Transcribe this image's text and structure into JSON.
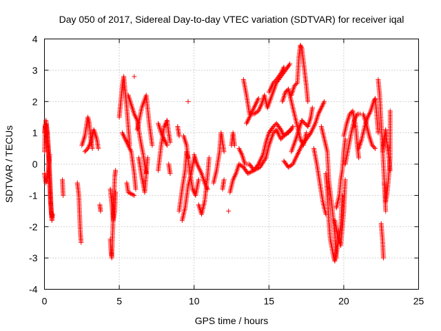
{
  "chart_data": {
    "type": "scatter",
    "title": "Day 050 of 2017, Sidereal Day-to-day VTEC variation (SDTVAR) for receiver iqal",
    "xlabel": "GPS time / hours",
    "ylabel": "SDTVAR / TECUs",
    "xlim": [
      0,
      25
    ],
    "ylim": [
      -4,
      4
    ],
    "xticks": [
      0,
      5,
      10,
      15,
      20,
      25
    ],
    "yticks": [
      -4,
      -3,
      -2,
      -1,
      0,
      1,
      2,
      3,
      4
    ],
    "xtick_labels": [
      "0",
      "5",
      "10",
      "15",
      "20",
      "25"
    ],
    "ytick_labels": [
      "-4",
      "-3",
      "-2",
      "-1",
      "0",
      "1",
      "2",
      "3",
      "4"
    ],
    "grid": true,
    "marker": "plus",
    "color": "#ff0000",
    "tracks": [
      [
        [
          0.0,
          1.0
        ],
        [
          0.1,
          1.4
        ],
        [
          0.2,
          1.0
        ],
        [
          0.3,
          0.3
        ],
        [
          0.4,
          -0.8
        ],
        [
          0.45,
          -1.5
        ],
        [
          0.5,
          -1.8
        ],
        [
          0.55,
          -1.6
        ]
      ],
      [
        [
          0.0,
          -0.3
        ],
        [
          0.1,
          -0.6
        ],
        [
          0.2,
          -0.4
        ],
        [
          0.3,
          0.0
        ],
        [
          0.35,
          0.3
        ]
      ],
      [
        [
          0.0,
          0.4
        ],
        [
          0.05,
          1.2
        ],
        [
          0.12,
          1.3
        ],
        [
          0.2,
          0.8
        ],
        [
          0.3,
          -0.1
        ],
        [
          0.4,
          -1.2
        ],
        [
          0.5,
          -1.7
        ]
      ],
      [
        [
          2.2,
          -0.6
        ],
        [
          2.3,
          -1.0
        ],
        [
          2.35,
          -1.6
        ],
        [
          2.4,
          -2.2
        ],
        [
          2.45,
          -2.5
        ]
      ],
      [
        [
          2.5,
          0.6
        ],
        [
          2.7,
          0.9
        ],
        [
          2.9,
          1.5
        ],
        [
          3.0,
          1.3
        ],
        [
          3.1,
          0.8
        ],
        [
          3.2,
          0.5
        ]
      ],
      [
        [
          2.7,
          0.4
        ],
        [
          2.9,
          0.5
        ],
        [
          3.1,
          0.7
        ],
        [
          3.3,
          1.1
        ],
        [
          3.5,
          0.8
        ],
        [
          3.6,
          0.5
        ]
      ],
      [
        [
          3.7,
          -1.3
        ],
        [
          3.75,
          -1.5
        ]
      ],
      [
        [
          4.4,
          -2.4
        ],
        [
          4.45,
          -2.8
        ],
        [
          4.5,
          -3.0
        ],
        [
          4.55,
          -2.3
        ],
        [
          4.6,
          -1.6
        ],
        [
          4.65,
          -1.0
        ],
        [
          4.7,
          -0.4
        ],
        [
          4.75,
          -0.2
        ]
      ],
      [
        [
          4.4,
          -0.8
        ],
        [
          4.5,
          -1.3
        ],
        [
          4.6,
          -1.8
        ],
        [
          4.7,
          -1.5
        ],
        [
          4.75,
          -0.9
        ]
      ],
      [
        [
          5.0,
          1.5
        ],
        [
          5.1,
          2.0
        ],
        [
          5.2,
          2.5
        ],
        [
          5.3,
          2.8
        ],
        [
          5.4,
          2.3
        ],
        [
          5.5,
          1.8
        ],
        [
          5.6,
          1.2
        ],
        [
          5.7,
          0.6
        ]
      ],
      [
        [
          5.2,
          1.0
        ],
        [
          5.4,
          0.8
        ],
        [
          5.6,
          0.6
        ],
        [
          5.8,
          0.4
        ],
        [
          6.0,
          -0.3
        ],
        [
          6.1,
          -0.8
        ]
      ],
      [
        [
          5.6,
          2.2
        ],
        [
          5.8,
          1.9
        ],
        [
          6.0,
          1.6
        ],
        [
          6.2,
          1.4
        ],
        [
          6.4,
          0.8
        ],
        [
          6.6,
          0.3
        ],
        [
          6.8,
          -0.3
        ]
      ],
      [
        [
          6.0,
          2.8
        ]
      ],
      [
        [
          6.2,
          1.1
        ],
        [
          6.5,
          1.8
        ],
        [
          6.8,
          2.2
        ],
        [
          7.0,
          1.3
        ],
        [
          7.2,
          0.6
        ]
      ],
      [
        [
          6.3,
          0.2
        ],
        [
          6.5,
          -0.4
        ],
        [
          6.7,
          -0.9
        ],
        [
          6.9,
          0.2
        ]
      ],
      [
        [
          7.6,
          -0.2
        ],
        [
          7.8,
          0.6
        ],
        [
          8.0,
          1.2
        ],
        [
          8.2,
          1.4
        ],
        [
          8.3,
          1.0
        ],
        [
          8.4,
          0.7
        ]
      ],
      [
        [
          7.6,
          1.3
        ],
        [
          7.8,
          1.0
        ],
        [
          8.0,
          0.8
        ],
        [
          8.2,
          0.6
        ]
      ],
      [
        [
          8.3,
          0.0
        ],
        [
          8.4,
          -0.3
        ]
      ],
      [
        [
          9.0,
          -1.5
        ],
        [
          9.2,
          -0.8
        ],
        [
          9.4,
          -0.2
        ],
        [
          9.5,
          0.4
        ],
        [
          9.6,
          0.2
        ]
      ],
      [
        [
          9.2,
          -1.8
        ],
        [
          9.4,
          -1.4
        ],
        [
          9.6,
          -0.7
        ],
        [
          9.8,
          -0.3
        ],
        [
          10.0,
          0.2
        ]
      ],
      [
        [
          9.6,
          2.0
        ]
      ],
      [
        [
          9.3,
          0.9
        ],
        [
          9.5,
          0.6
        ],
        [
          9.7,
          -0.2
        ],
        [
          9.9,
          -0.8
        ],
        [
          10.1,
          -1.0
        ],
        [
          10.3,
          -0.5
        ]
      ],
      [
        [
          10.3,
          -1.3
        ],
        [
          10.5,
          -1.6
        ],
        [
          10.7,
          -1.2
        ],
        [
          10.9,
          -0.4
        ],
        [
          11.0,
          0.2
        ]
      ],
      [
        [
          10.0,
          0.3
        ],
        [
          10.2,
          0.0
        ],
        [
          10.5,
          -0.3
        ],
        [
          10.7,
          -0.6
        ],
        [
          10.9,
          -0.8
        ]
      ],
      [
        [
          11.3,
          -0.6
        ],
        [
          11.5,
          -0.2
        ],
        [
          11.7,
          0.4
        ],
        [
          11.8,
          1.0
        ],
        [
          12.0,
          0.4
        ]
      ],
      [
        [
          11.9,
          -0.8
        ],
        [
          12.0,
          -0.5
        ]
      ],
      [
        [
          12.3,
          -1.5
        ]
      ],
      [
        [
          12.4,
          -0.9
        ],
        [
          12.6,
          -0.5
        ],
        [
          12.8,
          -0.3
        ],
        [
          13.0,
          0.0
        ],
        [
          13.3,
          -0.1
        ],
        [
          13.6,
          -0.3
        ],
        [
          14.0,
          -0.2
        ],
        [
          14.4,
          -0.1
        ],
        [
          14.8,
          0.2
        ],
        [
          15.0,
          0.6
        ],
        [
          15.3,
          1.0
        ],
        [
          15.5,
          1.1
        ],
        [
          15.8,
          0.8
        ],
        [
          16.0,
          0.9
        ],
        [
          16.2,
          1.0
        ],
        [
          16.5,
          1.1
        ]
      ],
      [
        [
          12.5,
          0.6
        ],
        [
          12.6,
          1.0
        ],
        [
          12.7,
          0.6
        ]
      ],
      [
        [
          13.0,
          0.5
        ],
        [
          13.2,
          0.3
        ],
        [
          13.4,
          0.0
        ],
        [
          13.7,
          0.0
        ],
        [
          14.0,
          -0.2
        ],
        [
          14.3,
          0.0
        ],
        [
          14.6,
          0.3
        ],
        [
          14.8,
          0.7
        ],
        [
          15.0,
          1.0
        ],
        [
          15.3,
          1.2
        ],
        [
          15.5,
          1.3
        ],
        [
          15.8,
          1.1
        ],
        [
          16.0,
          0.9
        ],
        [
          16.3,
          1.0
        ],
        [
          16.6,
          1.2
        ]
      ],
      [
        [
          13.3,
          2.7
        ],
        [
          13.5,
          2.2
        ],
        [
          13.7,
          1.6
        ],
        [
          14.0,
          1.6
        ],
        [
          14.3,
          1.7
        ],
        [
          14.5,
          1.9
        ],
        [
          14.7,
          2.2
        ],
        [
          14.9,
          1.8
        ],
        [
          15.2,
          2.2
        ],
        [
          15.5,
          2.6
        ],
        [
          15.8,
          2.8
        ],
        [
          16.1,
          3.0
        ],
        [
          16.4,
          3.2
        ]
      ],
      [
        [
          13.5,
          1.3
        ],
        [
          13.7,
          1.5
        ],
        [
          14.0,
          1.8
        ],
        [
          14.3,
          2.1
        ]
      ],
      [
        [
          15.0,
          2.3
        ],
        [
          15.3,
          2.6
        ],
        [
          15.5,
          2.7
        ],
        [
          15.8,
          2.9
        ],
        [
          16.0,
          3.1
        ]
      ],
      [
        [
          16.5,
          2.2
        ],
        [
          16.7,
          2.5
        ],
        [
          16.9,
          2.6
        ],
        [
          17.0,
          3.4
        ],
        [
          17.1,
          3.8
        ],
        [
          17.2,
          3.7
        ],
        [
          17.3,
          3.3
        ],
        [
          17.4,
          2.9
        ],
        [
          17.5,
          2.5
        ],
        [
          17.6,
          2.0
        ]
      ],
      [
        [
          15.9,
          2.0
        ],
        [
          16.1,
          2.3
        ],
        [
          16.3,
          2.4
        ],
        [
          16.5,
          2.0
        ],
        [
          16.7,
          1.6
        ],
        [
          16.9,
          1.2
        ],
        [
          17.1,
          0.8
        ],
        [
          17.3,
          0.6
        ],
        [
          17.5,
          1.0
        ]
      ],
      [
        [
          16.5,
          0.4
        ],
        [
          16.8,
          0.8
        ],
        [
          17.0,
          1.1
        ],
        [
          17.2,
          1.4
        ],
        [
          17.4,
          1.3
        ],
        [
          17.6,
          1.2
        ],
        [
          17.8,
          1.5
        ],
        [
          17.9,
          1.8
        ]
      ],
      [
        [
          16.0,
          0.1
        ],
        [
          16.3,
          -0.1
        ],
        [
          16.6,
          0.0
        ],
        [
          16.9,
          0.3
        ],
        [
          17.2,
          0.6
        ],
        [
          17.5,
          0.8
        ],
        [
          17.8,
          1.0
        ],
        [
          18.1,
          1.3
        ],
        [
          18.3,
          1.6
        ],
        [
          18.5,
          1.8
        ],
        [
          18.7,
          2.0
        ]
      ],
      [
        [
          18.0,
          0.5
        ],
        [
          18.2,
          0.0
        ],
        [
          18.4,
          -0.6
        ],
        [
          18.6,
          -1.2
        ],
        [
          18.8,
          -1.6
        ]
      ],
      [
        [
          18.5,
          1.2
        ],
        [
          18.7,
          0.8
        ],
        [
          18.9,
          0.4
        ],
        [
          19.0,
          -0.5
        ],
        [
          19.2,
          -1.3
        ],
        [
          19.4,
          -2.2
        ],
        [
          19.5,
          -3.0
        ]
      ],
      [
        [
          18.8,
          -0.3
        ],
        [
          18.9,
          -0.9
        ],
        [
          19.0,
          -1.8
        ],
        [
          19.1,
          -2.4
        ],
        [
          19.3,
          -2.9
        ],
        [
          19.4,
          -3.1
        ],
        [
          19.6,
          -2.6
        ],
        [
          19.8,
          -2.0
        ],
        [
          19.9,
          -1.0
        ]
      ],
      [
        [
          19.5,
          -1.4
        ],
        [
          19.7,
          -1.0
        ],
        [
          19.8,
          -0.5
        ],
        [
          19.9,
          -0.2
        ],
        [
          20.0,
          0.4
        ],
        [
          20.1,
          0.8
        ]
      ],
      [
        [
          19.4,
          -1.8
        ],
        [
          19.6,
          -2.3
        ],
        [
          19.8,
          -2.6
        ],
        [
          20.0,
          -1.5
        ],
        [
          20.1,
          -0.5
        ]
      ],
      [
        [
          20.0,
          0.9
        ],
        [
          20.2,
          1.3
        ],
        [
          20.4,
          1.6
        ],
        [
          20.6,
          1.7
        ],
        [
          20.8,
          1.2
        ],
        [
          20.9,
          0.6
        ],
        [
          21.0,
          0.2
        ]
      ],
      [
        [
          20.1,
          0.0
        ],
        [
          20.3,
          0.5
        ],
        [
          20.5,
          1.0
        ],
        [
          20.7,
          1.4
        ],
        [
          20.9,
          1.6
        ],
        [
          21.1,
          1.6
        ]
      ],
      [
        [
          21.0,
          0.5
        ],
        [
          21.2,
          0.8
        ],
        [
          21.4,
          1.2
        ],
        [
          21.6,
          1.5
        ],
        [
          21.8,
          1.7
        ],
        [
          22.0,
          2.0
        ],
        [
          22.1,
          2.1
        ],
        [
          22.2,
          1.6
        ],
        [
          22.3,
          1.0
        ]
      ],
      [
        [
          21.3,
          1.6
        ],
        [
          21.5,
          1.3
        ],
        [
          21.7,
          0.9
        ],
        [
          21.9,
          0.6
        ],
        [
          22.1,
          0.5
        ]
      ],
      [
        [
          22.3,
          2.7
        ],
        [
          22.4,
          2.2
        ],
        [
          22.5,
          1.3
        ],
        [
          22.6,
          0.5
        ],
        [
          22.7,
          -0.5
        ],
        [
          22.8,
          -1.5
        ]
      ],
      [
        [
          22.5,
          -1.9
        ],
        [
          22.6,
          -2.5
        ],
        [
          22.65,
          -3.0
        ]
      ],
      [
        [
          22.6,
          0.4
        ],
        [
          22.7,
          0.8
        ],
        [
          22.8,
          1.1
        ],
        [
          22.9,
          0.6
        ],
        [
          23.0,
          0.3
        ],
        [
          23.1,
          -0.2
        ]
      ],
      [
        [
          22.7,
          -0.6
        ],
        [
          22.8,
          -1.2
        ],
        [
          22.9,
          -0.9
        ],
        [
          23.0,
          -0.4
        ],
        [
          23.1,
          0.2
        ],
        [
          23.1,
          1.7
        ]
      ],
      [
        [
          1.2,
          -0.5
        ],
        [
          1.25,
          -1.0
        ]
      ],
      [
        [
          5.5,
          -0.6
        ],
        [
          5.6,
          -0.9
        ],
        [
          6.0,
          -1.0
        ]
      ],
      [
        [
          8.9,
          1.2
        ],
        [
          9.0,
          0.9
        ]
      ]
    ]
  }
}
